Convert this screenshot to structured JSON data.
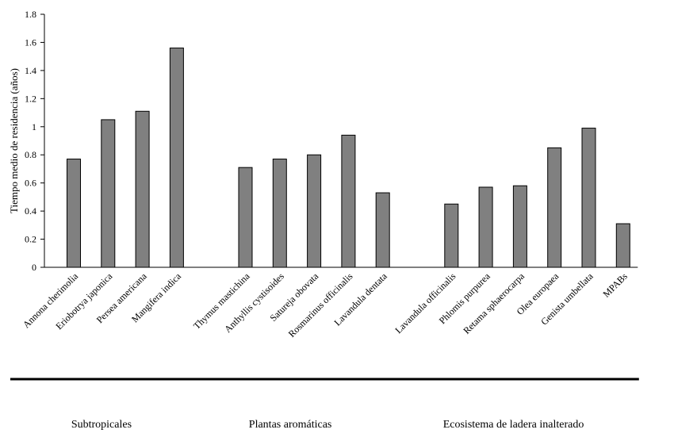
{
  "chart_data": {
    "type": "bar",
    "title": "",
    "xlabel": "",
    "ylabel": "Tiempo medio de residencia (años)",
    "ylim": [
      0,
      1.8
    ],
    "yticks": [
      "0",
      "0.2",
      "0.4",
      "0.6",
      "0.8",
      "1",
      "1.2",
      "1.4",
      "1.6",
      "1.8"
    ],
    "grid": false,
    "bar_color": "#808080",
    "groups": [
      {
        "name": "Subtropicales",
        "categories": [
          "Annona cherimolia",
          "Eriobotrya japonica",
          "Persea americana",
          "Mangifera indica"
        ],
        "values": [
          0.77,
          1.05,
          1.11,
          1.56
        ]
      },
      {
        "name": "Plantas aromáticas",
        "categories": [
          "Thymus mastichina",
          "Anthyllis cystisoides",
          "Satureja obovata",
          "Rosmarinus officinalis",
          "Lavandula dentata"
        ],
        "values": [
          0.71,
          0.77,
          0.8,
          0.94,
          0.53
        ]
      },
      {
        "name": "Ecosistema de ladera inalterado",
        "categories": [
          "Lavandula officinalis",
          "Phlomis purpurea",
          "Retama sphaerocarpa",
          "Olea europaea",
          "Genista umbellata",
          "MPABs"
        ],
        "values": [
          0.45,
          0.57,
          0.58,
          0.85,
          0.99,
          0.31
        ]
      }
    ]
  }
}
